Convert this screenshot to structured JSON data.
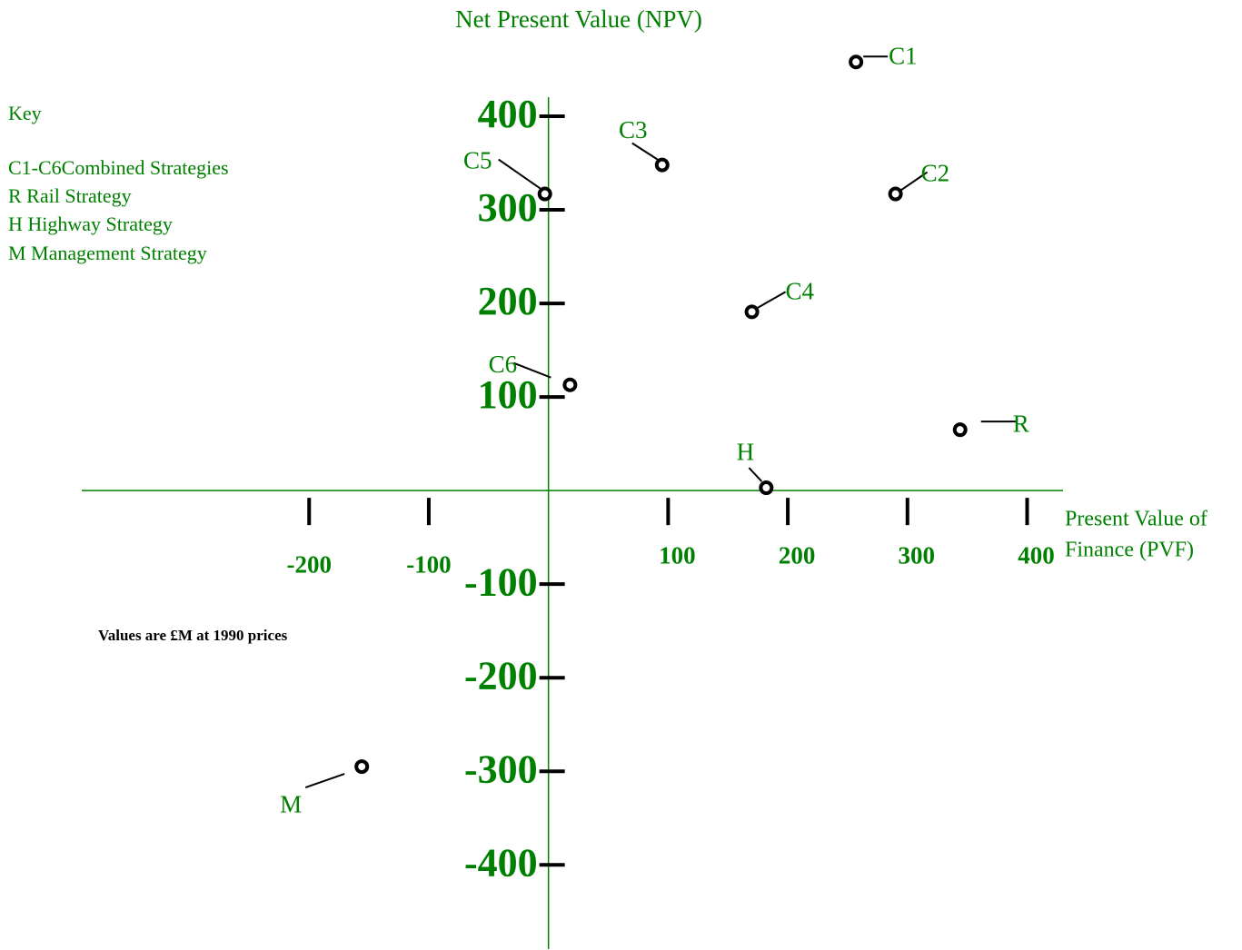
{
  "chart_data": {
    "type": "scatter",
    "title": "Net Present Value (NPV)",
    "x_label": [
      "Present Value of",
      "Finance (PVF)"
    ],
    "note": "Values are £M at 1990 prices",
    "key": {
      "title": "Key",
      "items": [
        "C1-C6Combined Strategies",
        "R  Rail Strategy",
        "H  Highway Strategy",
        "M  Management Strategy"
      ]
    },
    "color": "#008000",
    "marker_color": "#000000",
    "series": [
      {
        "name": null,
        "labels": [
          "C1",
          "C2",
          "C3",
          "C4",
          "C5",
          "C6",
          "R",
          "H",
          "M"
        ],
        "x": [
          257,
          290,
          95,
          170,
          -3,
          18,
          344,
          182,
          -156
        ],
        "values": [
          458,
          317,
          348,
          191,
          317,
          113,
          65,
          3,
          -295
        ]
      }
    ],
    "xlim": [
      -390,
      430
    ],
    "ylim": [
      -490,
      500
    ],
    "xticks": [
      -200,
      -100,
      100,
      200,
      300,
      400
    ],
    "yticks": [
      400,
      300,
      200,
      100,
      -100,
      -200,
      -300,
      -400
    ]
  }
}
